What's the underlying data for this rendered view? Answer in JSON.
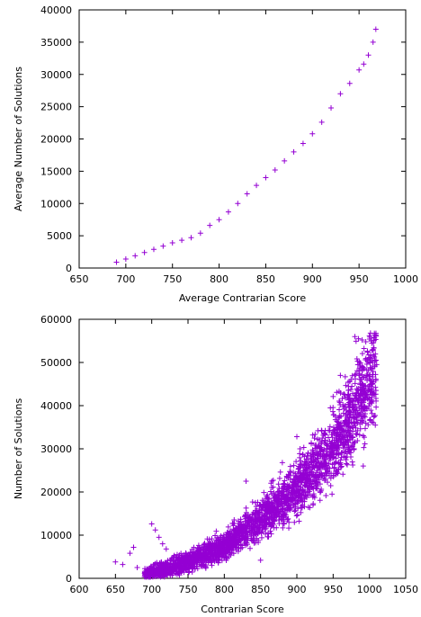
{
  "colors": {
    "series": "#9400d3",
    "axis": "#000000",
    "background": "#ffffff"
  },
  "chart_data": [
    {
      "type": "scatter",
      "title": "",
      "xlabel": "Average Contrarian Score",
      "ylabel": "Average Number of Solutions",
      "xlim": [
        650,
        1000
      ],
      "ylim": [
        0,
        40000
      ],
      "xticks": [
        650,
        700,
        750,
        800,
        850,
        900,
        950,
        1000
      ],
      "yticks": [
        0,
        5000,
        10000,
        15000,
        20000,
        25000,
        30000,
        35000,
        40000
      ],
      "marker": "+",
      "grid": false,
      "series": [
        {
          "x": [
            690,
            700,
            710,
            720,
            730,
            740,
            750,
            760,
            770,
            780,
            790,
            800,
            810,
            820,
            830,
            840,
            850,
            860,
            870,
            880,
            890,
            900,
            910,
            920,
            930,
            940,
            950,
            955,
            960,
            965,
            968
          ],
          "y": [
            900,
            1400,
            1900,
            2400,
            2900,
            3400,
            3900,
            4300,
            4700,
            5400,
            6600,
            7500,
            8700,
            10000,
            11500,
            12800,
            14000,
            15200,
            16600,
            18000,
            19300,
            20800,
            22600,
            24800,
            27000,
            28600,
            30700,
            31600,
            33000,
            35000,
            37000
          ]
        }
      ]
    },
    {
      "type": "scatter",
      "title": "",
      "xlabel": "Contrarian Score",
      "ylabel": "Number of Solutions",
      "xlim": [
        600,
        1050
      ],
      "ylim": [
        0,
        60000
      ],
      "xticks": [
        600,
        650,
        700,
        750,
        800,
        850,
        900,
        950,
        1000,
        1050
      ],
      "yticks": [
        0,
        10000,
        20000,
        30000,
        40000,
        50000,
        60000
      ],
      "marker": "+",
      "grid": false,
      "trend": {
        "x": [
          690,
          700,
          750,
          800,
          850,
          900,
          950,
          1000,
          1010
        ],
        "y": [
          800,
          1200,
          3800,
          7400,
          13800,
          20600,
          30300,
          45000,
          50000
        ]
      },
      "series": [
        {
          "x": [
            650,
            660,
            670,
            675,
            680,
            700,
            705,
            710,
            715,
            720,
            830,
            850,
            880,
            900,
            920,
            960,
            980,
            985,
            990,
            995,
            1000,
            1005,
            1010
          ],
          "y": [
            3800,
            3200,
            5800,
            7200,
            2500,
            12600,
            11200,
            9500,
            8000,
            6800,
            22500,
            4200,
            26800,
            32800,
            27000,
            47000,
            56000,
            55500,
            55200,
            54800,
            56200,
            53000,
            49500
          ]
        }
      ]
    }
  ]
}
